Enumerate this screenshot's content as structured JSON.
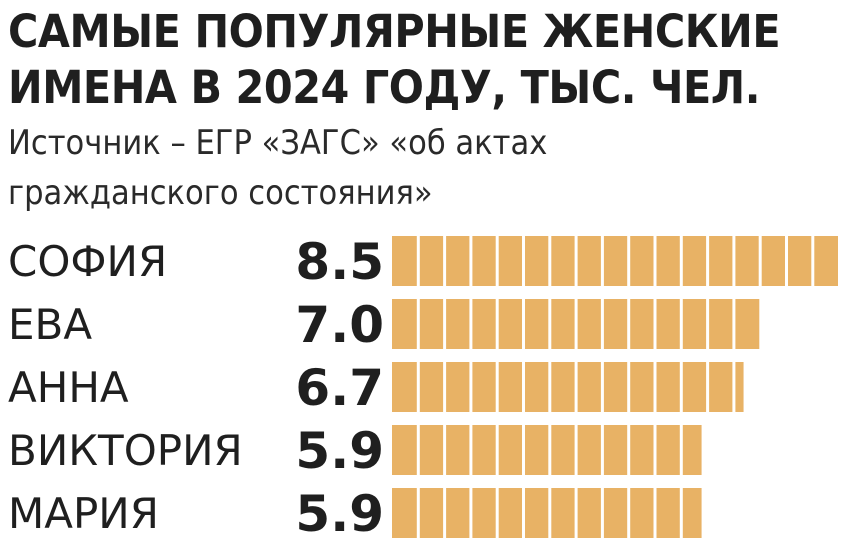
{
  "header": {
    "title_line1": "САМЫЕ ПОПУЛЯРНЫЕ ЖЕНСКИЕ",
    "title_line2": "ИМЕНА В 2024 ГОДУ, ТЫС. ЧЕЛ.",
    "subtitle_line1": "Источник – ЕГР «ЗАГС» «об актах",
    "subtitle_line2": "гражданского состояния»"
  },
  "chart_data": {
    "type": "bar",
    "orientation": "horizontal",
    "title": "САМЫЕ ПОПУЛЯРНЫЕ ЖЕНСКИЕ ИМЕНА В 2024 ГОДУ, ТЫС. ЧЕЛ.",
    "subtitle": "Источник – ЕГР «ЗАГС» «об актах гражданского состояния»",
    "categories": [
      "СОФИЯ",
      "ЕВА",
      "АННА",
      "ВИКТОРИЯ",
      "МАРИЯ"
    ],
    "values": [
      8.5,
      7.0,
      6.7,
      5.9,
      5.9
    ],
    "value_labels": [
      "8.5",
      "7.0",
      "6.7",
      "5.9",
      "5.9"
    ],
    "xlim": [
      0,
      8.5
    ],
    "grid": false,
    "legend": "none",
    "bar_color": "#e8b265",
    "segment_divider_color": "#ffffff"
  }
}
